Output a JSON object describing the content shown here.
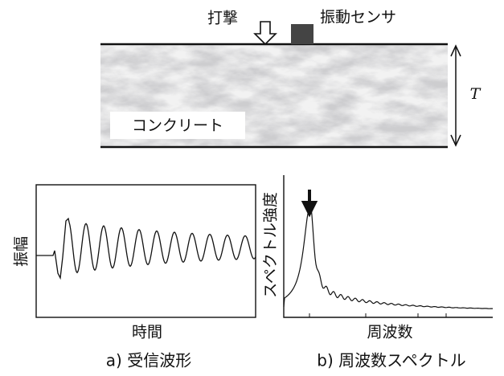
{
  "top": {
    "impact_label": "打撃",
    "sensor_label": "振動センサ",
    "thickness_label": "T",
    "material_label": "コンクリート"
  },
  "left_plot": {
    "y_label": "振幅",
    "x_label": "時間",
    "caption": "a) 受信波形"
  },
  "right_plot": {
    "y_label": "スペクトル強度",
    "x_label": "周波数",
    "caption": "b) 周波数スペクトル"
  }
}
